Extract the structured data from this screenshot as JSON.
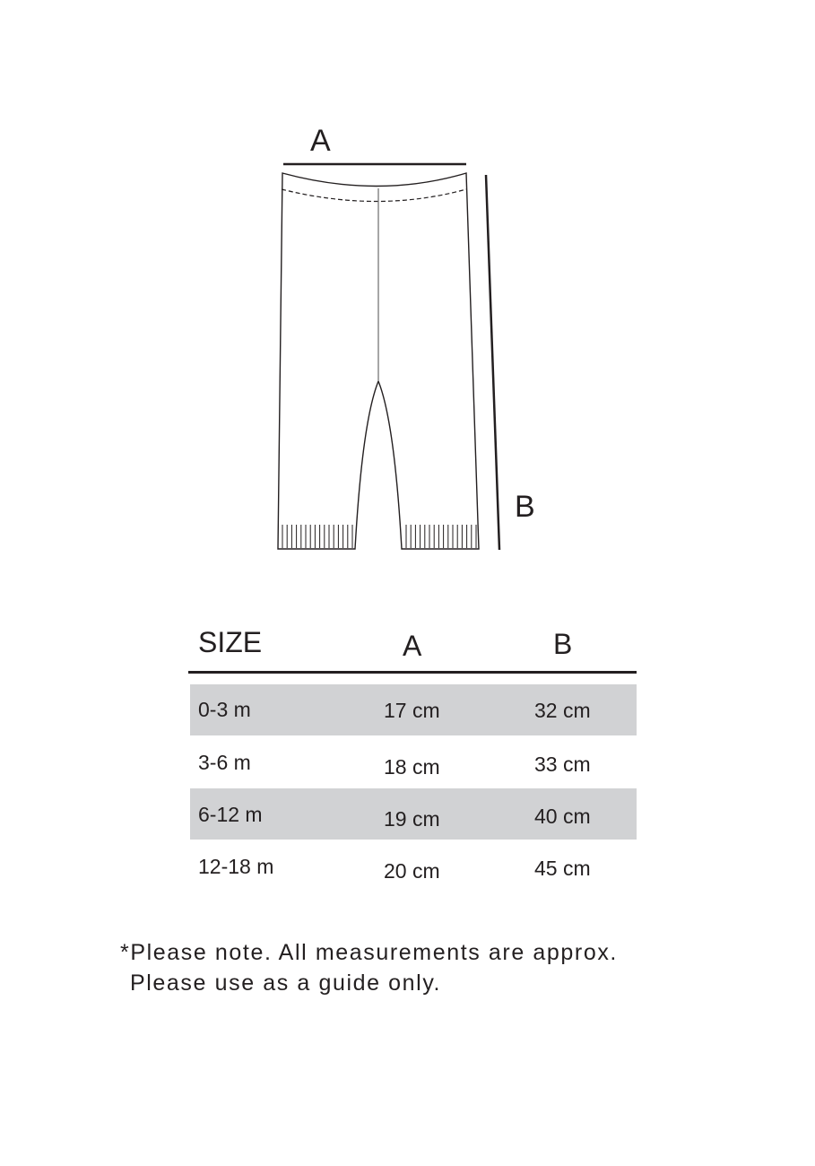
{
  "diagram": {
    "label_a": "A",
    "label_b": "B"
  },
  "table": {
    "headers": [
      "SIZE",
      "A",
      "B"
    ],
    "rows": [
      {
        "size": "0-3 m",
        "a": "17 cm",
        "b": "32 cm",
        "shaded": true
      },
      {
        "size": "3-6 m",
        "a": "18 cm",
        "b": "33 cm",
        "shaded": false
      },
      {
        "size": "6-12 m",
        "a": "19 cm",
        "b": "40 cm",
        "shaded": true
      },
      {
        "size": "12-18 m",
        "a": "20 cm",
        "b": "45 cm",
        "shaded": false
      }
    ],
    "shade_color": "#d1d2d4"
  },
  "footnote": {
    "line1": "*Please note. All measurements are approx.",
    "line2": "Please use as a guide only."
  }
}
